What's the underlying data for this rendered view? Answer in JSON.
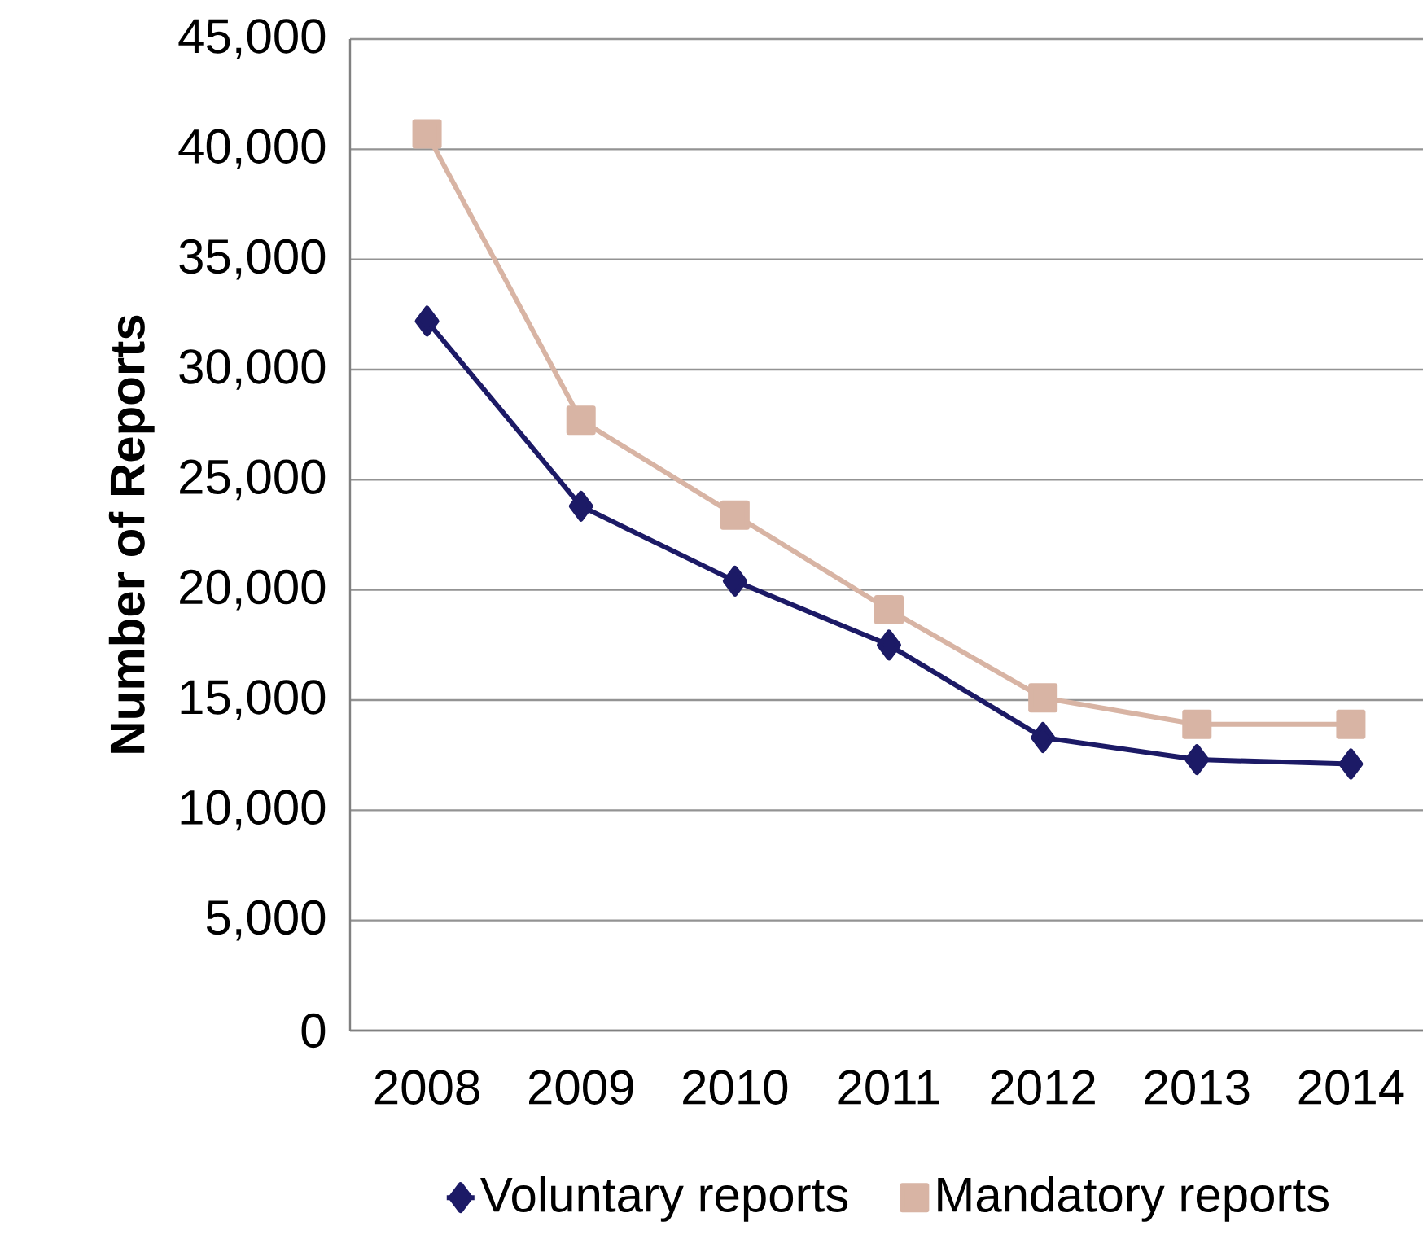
{
  "chart_data": {
    "type": "line",
    "ylabel": "Number of Reports",
    "categories": [
      "2008",
      "2009",
      "2010",
      "2011",
      "2012",
      "2013",
      "2014"
    ],
    "series": [
      {
        "name": "Voluntary reports",
        "color": "#1c1a66",
        "marker": "diamond",
        "values": [
          32200,
          23800,
          20400,
          17500,
          13300,
          12300,
          12100
        ]
      },
      {
        "name": "Mandatory reports",
        "color": "#d8b4a4",
        "marker": "square",
        "values": [
          40700,
          27700,
          23400,
          19100,
          15100,
          13900,
          13900
        ]
      }
    ],
    "ylim": [
      0,
      45000
    ],
    "yticks": [
      0,
      {
        "value": 5000,
        "label": "5,000"
      },
      {
        "value": 10000,
        "label": "10,000"
      },
      {
        "value": 15000,
        "label": "15,000"
      },
      {
        "value": 20000,
        "label": "20,000"
      },
      {
        "value": 25000,
        "label": "25,000"
      },
      {
        "value": 30000,
        "label": "30,000"
      },
      {
        "value": 35000,
        "label": "35,000"
      },
      {
        "value": 40000,
        "label": "40,000"
      },
      {
        "value": 45000,
        "label": "45,000"
      }
    ],
    "grid": "y",
    "legend": "bottom"
  }
}
